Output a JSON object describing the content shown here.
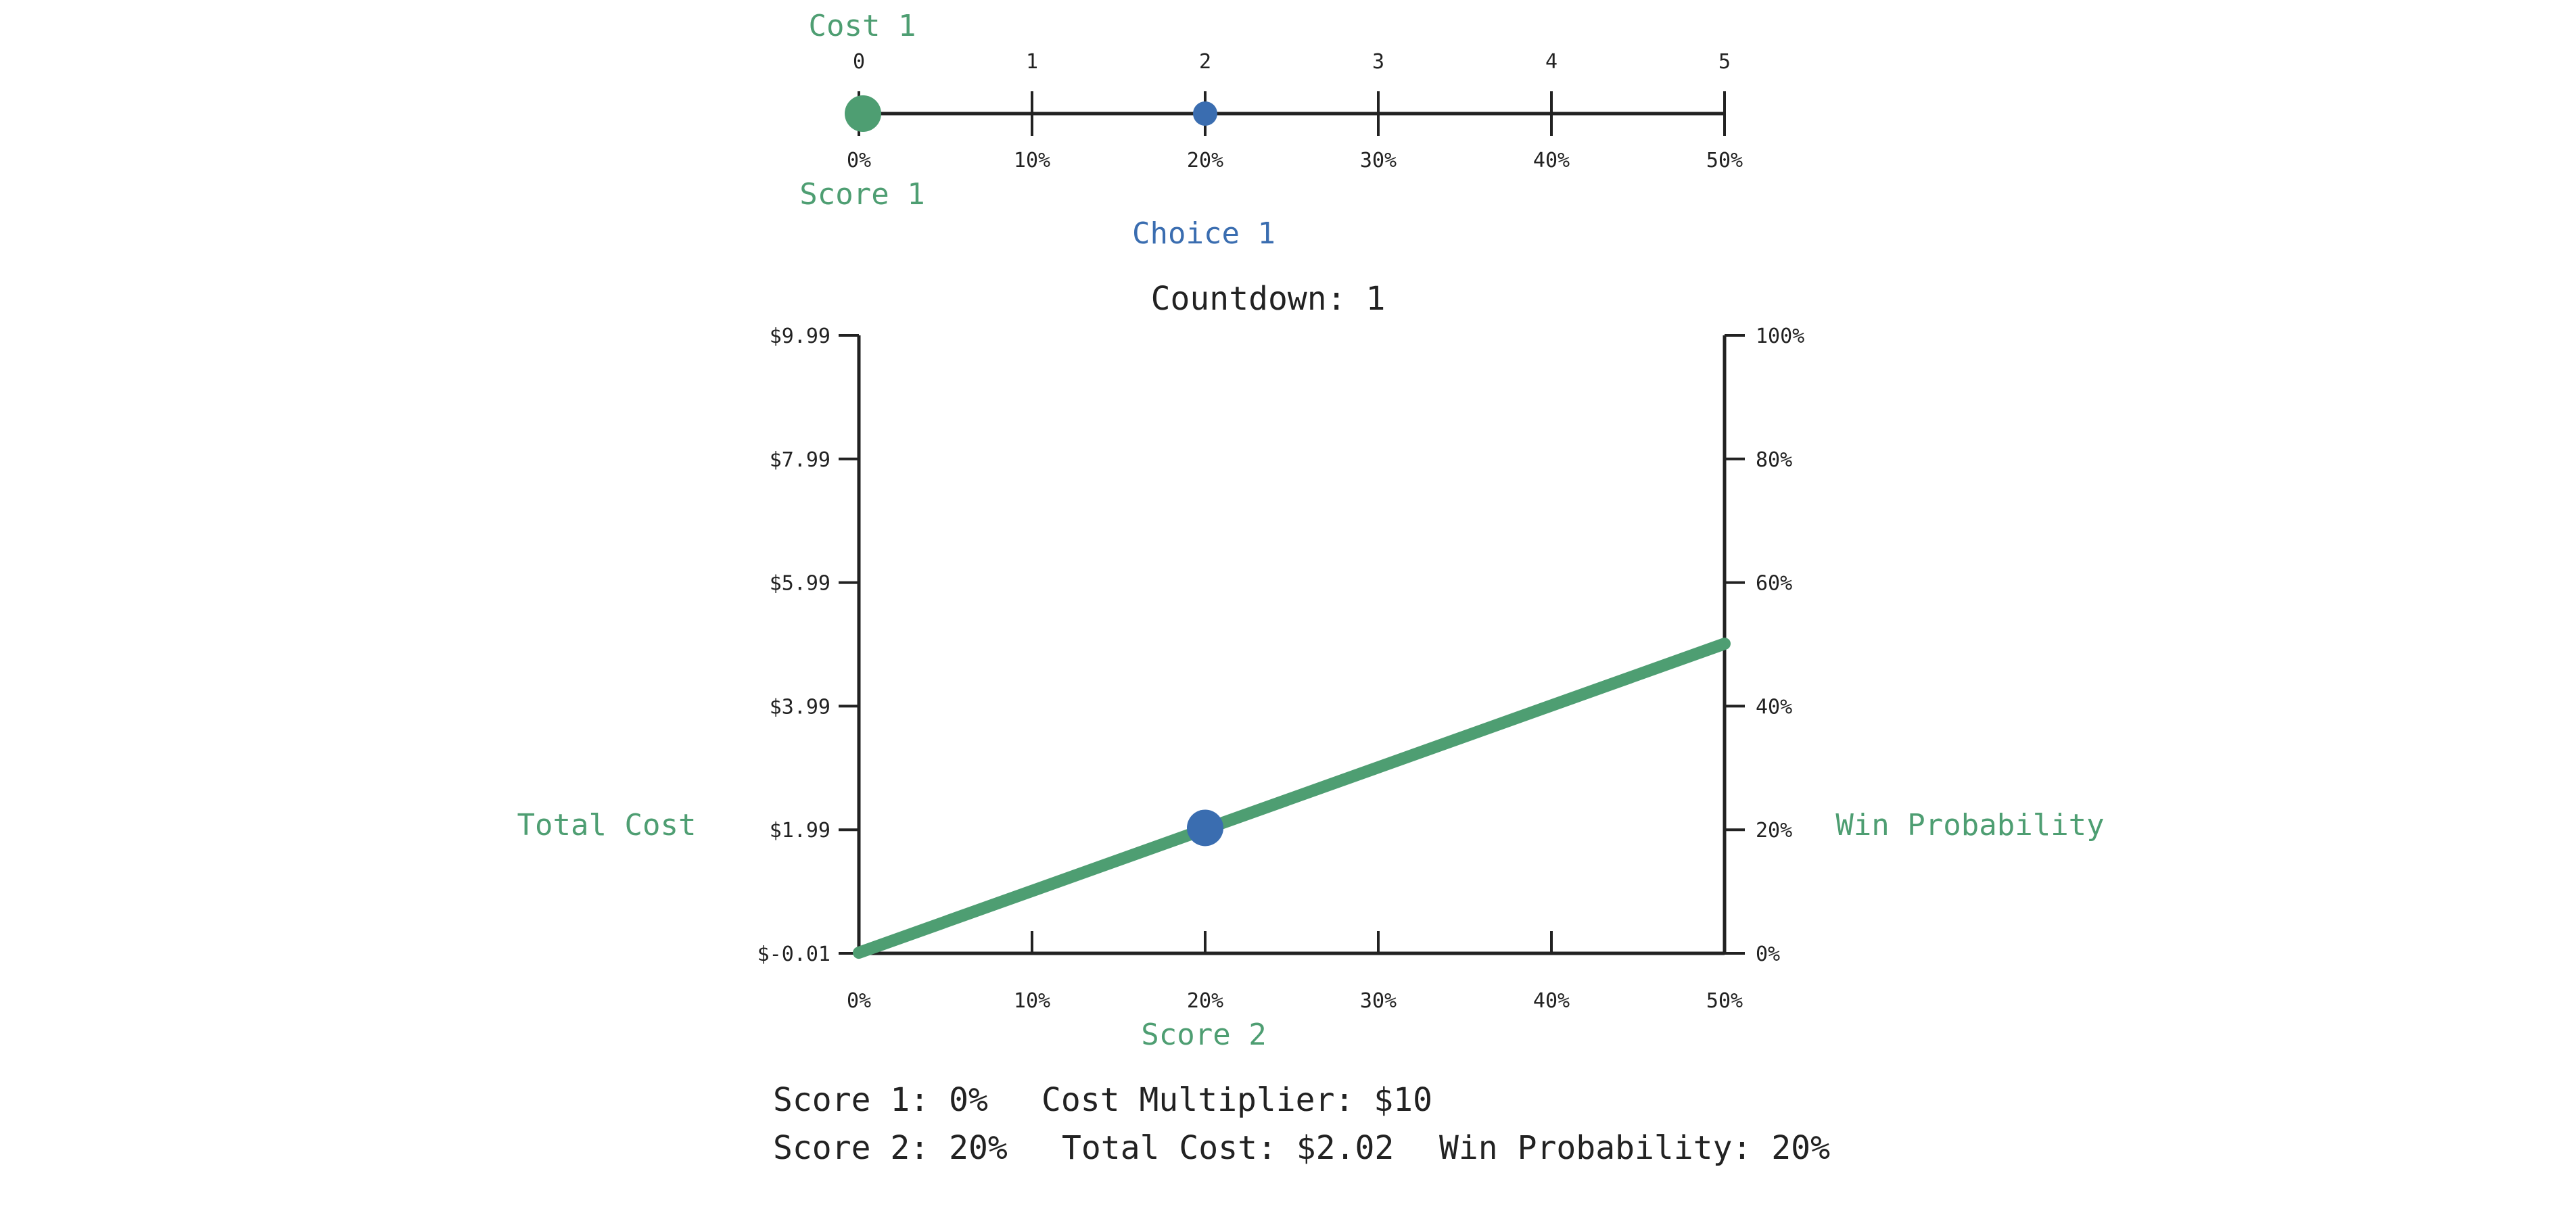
{
  "colors": {
    "green": "#4e9e72",
    "blue": "#3a6db0",
    "axis": "#222222"
  },
  "slider": {
    "cost_title": "Cost 1",
    "score_title": "Score 1",
    "choice_label": "Choice 1",
    "cost_ticks": [
      "0",
      "1",
      "2",
      "3",
      "4",
      "5"
    ],
    "score_ticks": [
      "0%",
      "10%",
      "20%",
      "30%",
      "40%",
      "50%"
    ],
    "current_score_percent": 0,
    "choice_score_percent": 20
  },
  "countdown": {
    "label": "Countdown: 1"
  },
  "chart_data": {
    "type": "line",
    "xlabel": "Score 2",
    "ylabel": "Total Cost",
    "y2label": "Win Probability",
    "x_ticks": [
      "0%",
      "10%",
      "20%",
      "30%",
      "40%",
      "50%"
    ],
    "y_ticks": [
      "$-0.01",
      "$1.99",
      "$3.99",
      "$5.99",
      "$7.99",
      "$9.99"
    ],
    "y2_ticks": [
      "0%",
      "20%",
      "40%",
      "60%",
      "80%",
      "100%"
    ],
    "xlim": [
      0,
      50
    ],
    "ylim": [
      -0.01,
      9.99
    ],
    "y2lim": [
      0,
      100
    ],
    "series": [
      {
        "x": [
          0,
          50
        ],
        "y": [
          0,
          5
        ]
      }
    ],
    "marker": {
      "x": 20,
      "y": 2.02
    }
  },
  "summary": {
    "score1": "Score 1: 0%",
    "cost_multiplier": "Cost Multiplier: $10",
    "score2": "Score 2: 20%",
    "total_cost": "Total Cost: $2.02",
    "win_probability": "Win Probability: 20%"
  }
}
